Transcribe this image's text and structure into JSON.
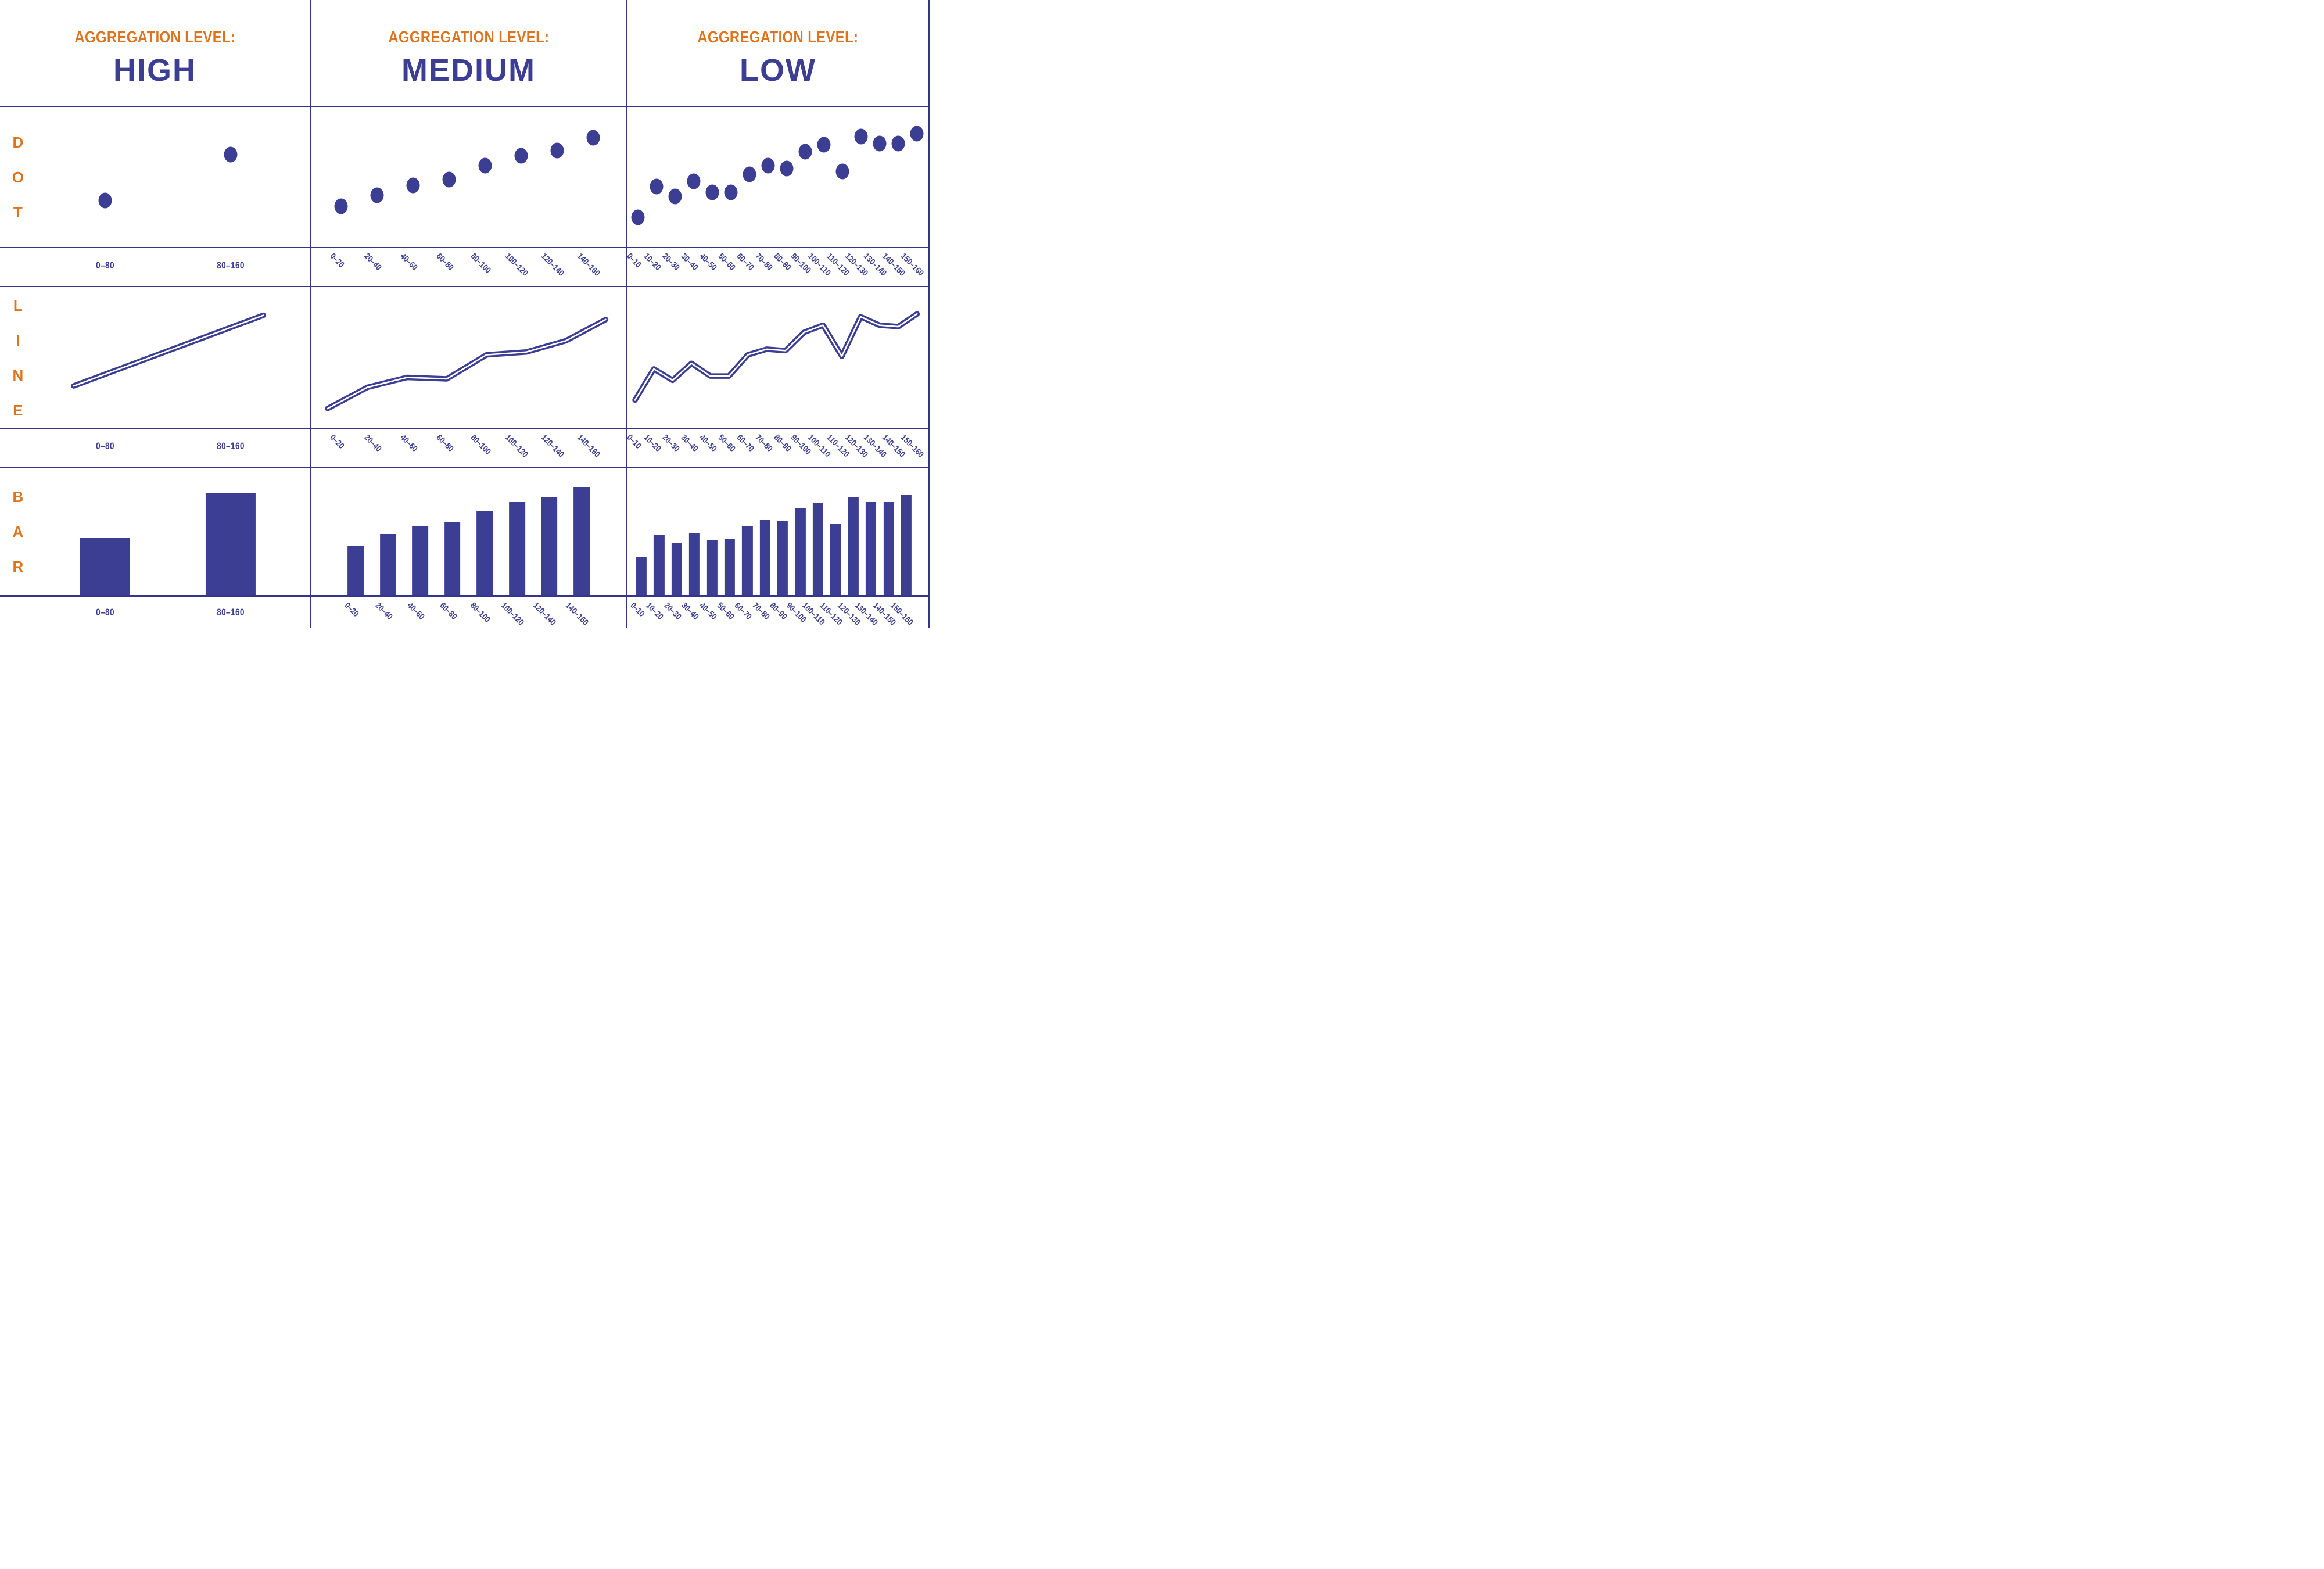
{
  "colors": {
    "blue": "#3b3e92",
    "orange": "#dd731c",
    "grid_line": "#343789",
    "background": "#ffffff",
    "line_core": "#ffffff"
  },
  "columns": [
    {
      "eyebrow": "AGGREGATION LEVEL:",
      "level": "HIGH"
    },
    {
      "eyebrow": "AGGREGATION LEVEL:",
      "level": "MEDIUM"
    },
    {
      "eyebrow": "AGGREGATION LEVEL:",
      "level": "LOW"
    }
  ],
  "rows": [
    {
      "label": "DOT"
    },
    {
      "label": "LINE"
    },
    {
      "label": "BAR"
    }
  ],
  "chart_data": [
    {
      "type": "scatter",
      "row": "DOT",
      "aggregation": "HIGH",
      "categories": [
        "0–80",
        "80–160"
      ],
      "values": [
        33,
        66
      ],
      "ylim": [
        0,
        100
      ],
      "grid": false,
      "legend": "none",
      "note": "values estimated as percent of cell height"
    },
    {
      "type": "scatter",
      "row": "DOT",
      "aggregation": "MEDIUM",
      "categories": [
        "0–20",
        "20–40",
        "40–60",
        "60–80",
        "80–100",
        "100–120",
        "120–140",
        "140–160"
      ],
      "values": [
        29,
        37,
        44,
        48,
        58,
        65,
        69,
        78
      ],
      "ylim": [
        0,
        100
      ],
      "grid": false,
      "legend": "none"
    },
    {
      "type": "scatter",
      "row": "DOT",
      "aggregation": "LOW",
      "categories": [
        "0–10",
        "10–20",
        "20–30",
        "30–40",
        "40–50",
        "50–60",
        "60–70",
        "70–80",
        "80–90",
        "90–100",
        "100–110",
        "110–120",
        "120–130",
        "130–140",
        "140–150",
        "150–160"
      ],
      "values": [
        21,
        43,
        36,
        47,
        39,
        39,
        52,
        58,
        56,
        68,
        73,
        54,
        79,
        74,
        74,
        81
      ],
      "ylim": [
        0,
        100
      ],
      "grid": false,
      "legend": "none"
    },
    {
      "type": "line",
      "row": "LINE",
      "aggregation": "HIGH",
      "categories": [
        "0–80",
        "80–160"
      ],
      "values": [
        30,
        80
      ],
      "ylim": [
        0,
        100
      ],
      "grid": false,
      "legend": "none"
    },
    {
      "type": "line",
      "row": "LINE",
      "aggregation": "MEDIUM",
      "categories": [
        "0–20",
        "20–40",
        "40–60",
        "60–80",
        "80–100",
        "100–120",
        "120–140",
        "140–160"
      ],
      "values": [
        14,
        29,
        36,
        35,
        52,
        54,
        62,
        77
      ],
      "ylim": [
        0,
        100
      ],
      "grid": false,
      "legend": "none"
    },
    {
      "type": "line",
      "row": "LINE",
      "aggregation": "LOW",
      "categories": [
        "0–10",
        "10–20",
        "20–30",
        "30–40",
        "40–50",
        "50–60",
        "60–70",
        "70–80",
        "80–90",
        "90–100",
        "100–110",
        "110–120",
        "120–130",
        "130–140",
        "140–150",
        "150–160"
      ],
      "values": [
        20,
        42,
        34,
        46,
        37,
        37,
        52,
        56,
        55,
        68,
        73,
        51,
        79,
        73,
        72,
        81
      ],
      "ylim": [
        0,
        100
      ],
      "grid": false,
      "legend": "none"
    },
    {
      "type": "bar",
      "row": "BAR",
      "aggregation": "HIGH",
      "categories": [
        "0–80",
        "80–160"
      ],
      "values": [
        45,
        80
      ],
      "ylim": [
        0,
        100
      ],
      "grid": false,
      "legend": "none"
    },
    {
      "type": "bar",
      "row": "BAR",
      "aggregation": "MEDIUM",
      "categories": [
        "0–20",
        "20–40",
        "40–60",
        "60–80",
        "80–100",
        "100–120",
        "120–140",
        "140–160"
      ],
      "values": [
        39,
        48,
        54,
        57,
        66,
        73,
        77,
        85
      ],
      "ylim": [
        0,
        100
      ],
      "grid": false,
      "legend": "none"
    },
    {
      "type": "bar",
      "row": "BAR",
      "aggregation": "LOW",
      "categories": [
        "0–10",
        "10–20",
        "20–30",
        "30–40",
        "40–50",
        "50–60",
        "60–70",
        "70–80",
        "80–90",
        "90–100",
        "100–110",
        "110–120",
        "120–130",
        "130–140",
        "140–150",
        "150–160"
      ],
      "values": [
        30,
        47,
        41,
        49,
        43,
        44,
        54,
        59,
        58,
        68,
        72,
        56,
        77,
        73,
        73,
        79
      ],
      "ylim": [
        0,
        100
      ],
      "grid": false,
      "legend": "none"
    }
  ]
}
